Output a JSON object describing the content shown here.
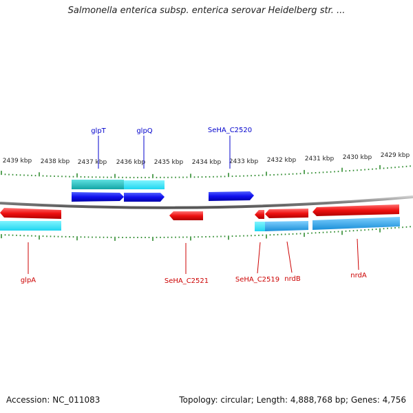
{
  "title": "Salmonella enterica subsp. enterica serovar Heidelberg str. ...",
  "footer": {
    "accession": "Accession: NC_011083",
    "summary": "Topology: circular; Length: 4,888,768 bp; Genes: 4,756"
  },
  "axis": {
    "labels": [
      "2439 kbp",
      "2438 kbp",
      "2437 kbp",
      "2436 kbp",
      "2435 kbp",
      "2434 kbp",
      "2433 kbp",
      "2432 kbp",
      "2431 kbp",
      "2430 kbp",
      "2429 kbp"
    ]
  },
  "genes": {
    "top": [
      "glpT",
      "glpQ",
      "SeHA_C2520"
    ],
    "bottom": [
      "glpA",
      "SeHA_C2521",
      "SeHA_C2519",
      "nrdB",
      "nrdA"
    ]
  },
  "colors": {
    "forward": "#1010ee",
    "reverse": "#ee1111",
    "forward_cds": "#20cccc",
    "reverse_cds": "#22aaee",
    "label_top": "#0000cc",
    "label_bottom": "#cc0000",
    "tick": "#2e8b2e",
    "backbone": "#888888"
  }
}
